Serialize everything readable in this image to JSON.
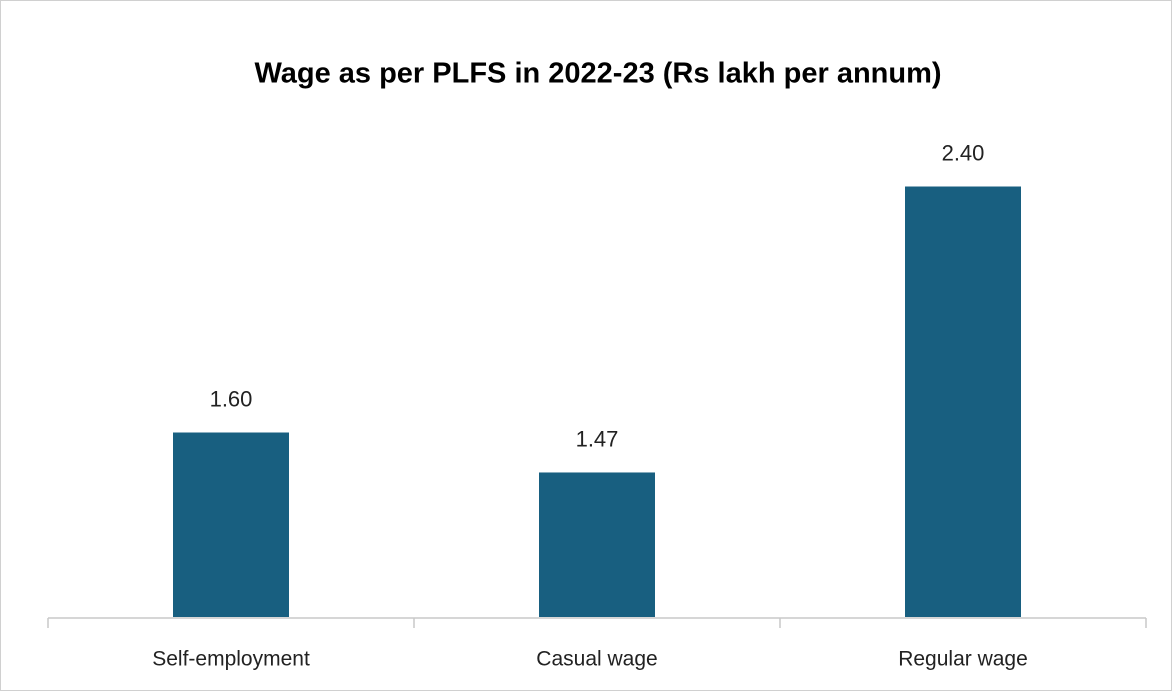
{
  "chart_data": {
    "type": "bar",
    "title": "Wage as per PLFS in 2022-23 (Rs lakh per annum)",
    "categories": [
      "Self-employment",
      "Casual wage",
      "Regular wage"
    ],
    "values": [
      1.6,
      1.47,
      2.4
    ],
    "value_labels": [
      "1.60",
      "1.47",
      "2.40"
    ],
    "color": "#185f80",
    "ylim": [
      1,
      2.6
    ]
  }
}
